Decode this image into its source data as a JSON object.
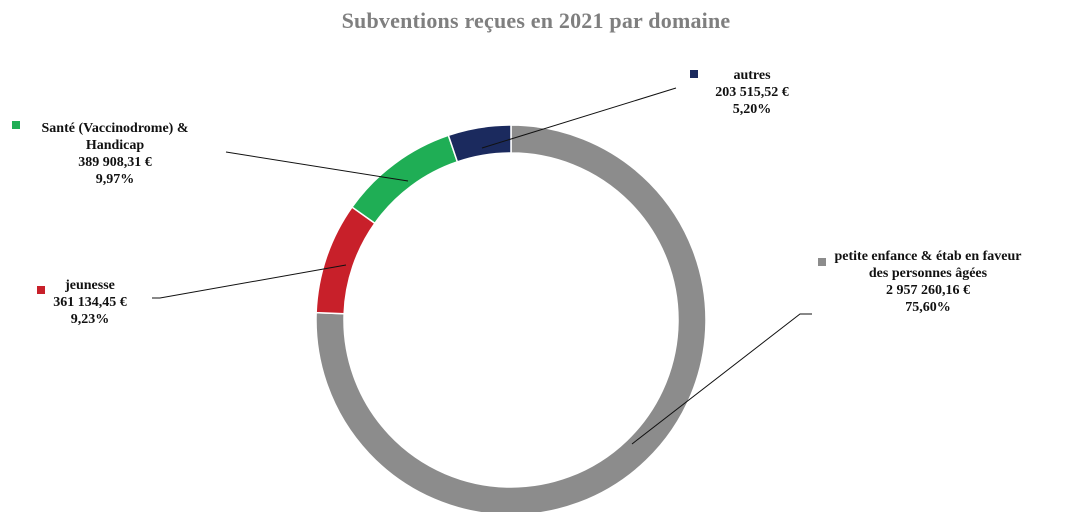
{
  "chart_data": {
    "type": "pie",
    "donut": true,
    "title": "Subventions reçues en 2021 par domaine",
    "slices": [
      {
        "name": "petite enfance & étab en faveur des personnes âgées",
        "name_lines": [
          "petite enfance & étab en faveur",
          "des personnes âgées"
        ],
        "amount": "2 957 260,16 €",
        "value": 2957260.16,
        "percent": "75,60%",
        "color": "#8c8c8c"
      },
      {
        "name": "jeunesse",
        "name_lines": [
          "jeunesse"
        ],
        "amount": "361 134,45 €",
        "value": 361134.45,
        "percent": "9,23%",
        "color": "#c8202a"
      },
      {
        "name": "Santé (Vaccinodrome) & Handicap",
        "name_lines": [
          "Santé (Vaccinodrome) &",
          "Handicap"
        ],
        "amount": "389 908,31 €",
        "value": 389908.31,
        "percent": "9,97%",
        "color": "#1fae55"
      },
      {
        "name": "autres",
        "name_lines": [
          "autres"
        ],
        "amount": "203 515,52 €",
        "value": 203515.52,
        "percent": "5,20%",
        "color": "#1b2a5e"
      }
    ],
    "legend": "data-labels-with-leader-lines"
  }
}
